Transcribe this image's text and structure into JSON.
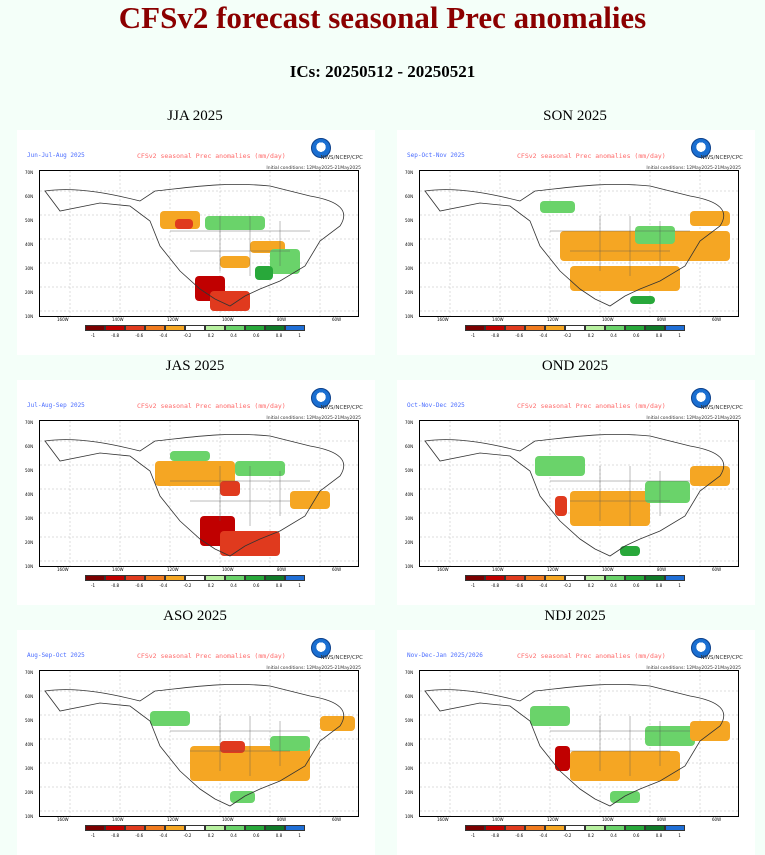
{
  "page": {
    "title": "CFSv2 forecast seasonal Prec anomalies",
    "ics": "ICs: 20250512 - 20250521"
  },
  "panels": [
    {
      "season": "JJA 2025",
      "map_title": "Jun-Jul-Aug 2025"
    },
    {
      "season": "SON 2025",
      "map_title": "Sep-Oct-Nov 2025"
    },
    {
      "season": "JAS 2025",
      "map_title": "Jul-Aug-Sep 2025"
    },
    {
      "season": "OND 2025",
      "map_title": "Oct-Nov-Dec 2025"
    },
    {
      "season": "ASO 2025",
      "map_title": "Aug-Sep-Oct 2025"
    },
    {
      "season": "NDJ 2025",
      "map_title": "Nov-Dec-Jan 2025/2026"
    }
  ],
  "map_common": {
    "variable_label": "CFSv2 seasonal Prec anomalies (mm/day)",
    "agency": "NWS/NCEP/CPC",
    "ic_range": "Initial conditions: 12May2025-21May2025",
    "lat_ticks": [
      "70N",
      "60N",
      "50N",
      "40N",
      "30N",
      "20N",
      "10N"
    ],
    "lon_ticks": [
      "160W",
      "140W",
      "120W",
      "100W",
      "80W",
      "60W"
    ],
    "colorbar_ticks": [
      "-1",
      "-0.8",
      "-0.6",
      "-0.4",
      "-0.2",
      "0.2",
      "0.4",
      "0.6",
      "0.8",
      "1"
    ],
    "colorbar_colors": [
      "#7a0000",
      "#c00000",
      "#e03a1e",
      "#f07a1e",
      "#f5a623",
      "#ffffff",
      "#b8f0a0",
      "#6ad36a",
      "#28a83a",
      "#107a2a",
      "#1f6fd6"
    ]
  }
}
